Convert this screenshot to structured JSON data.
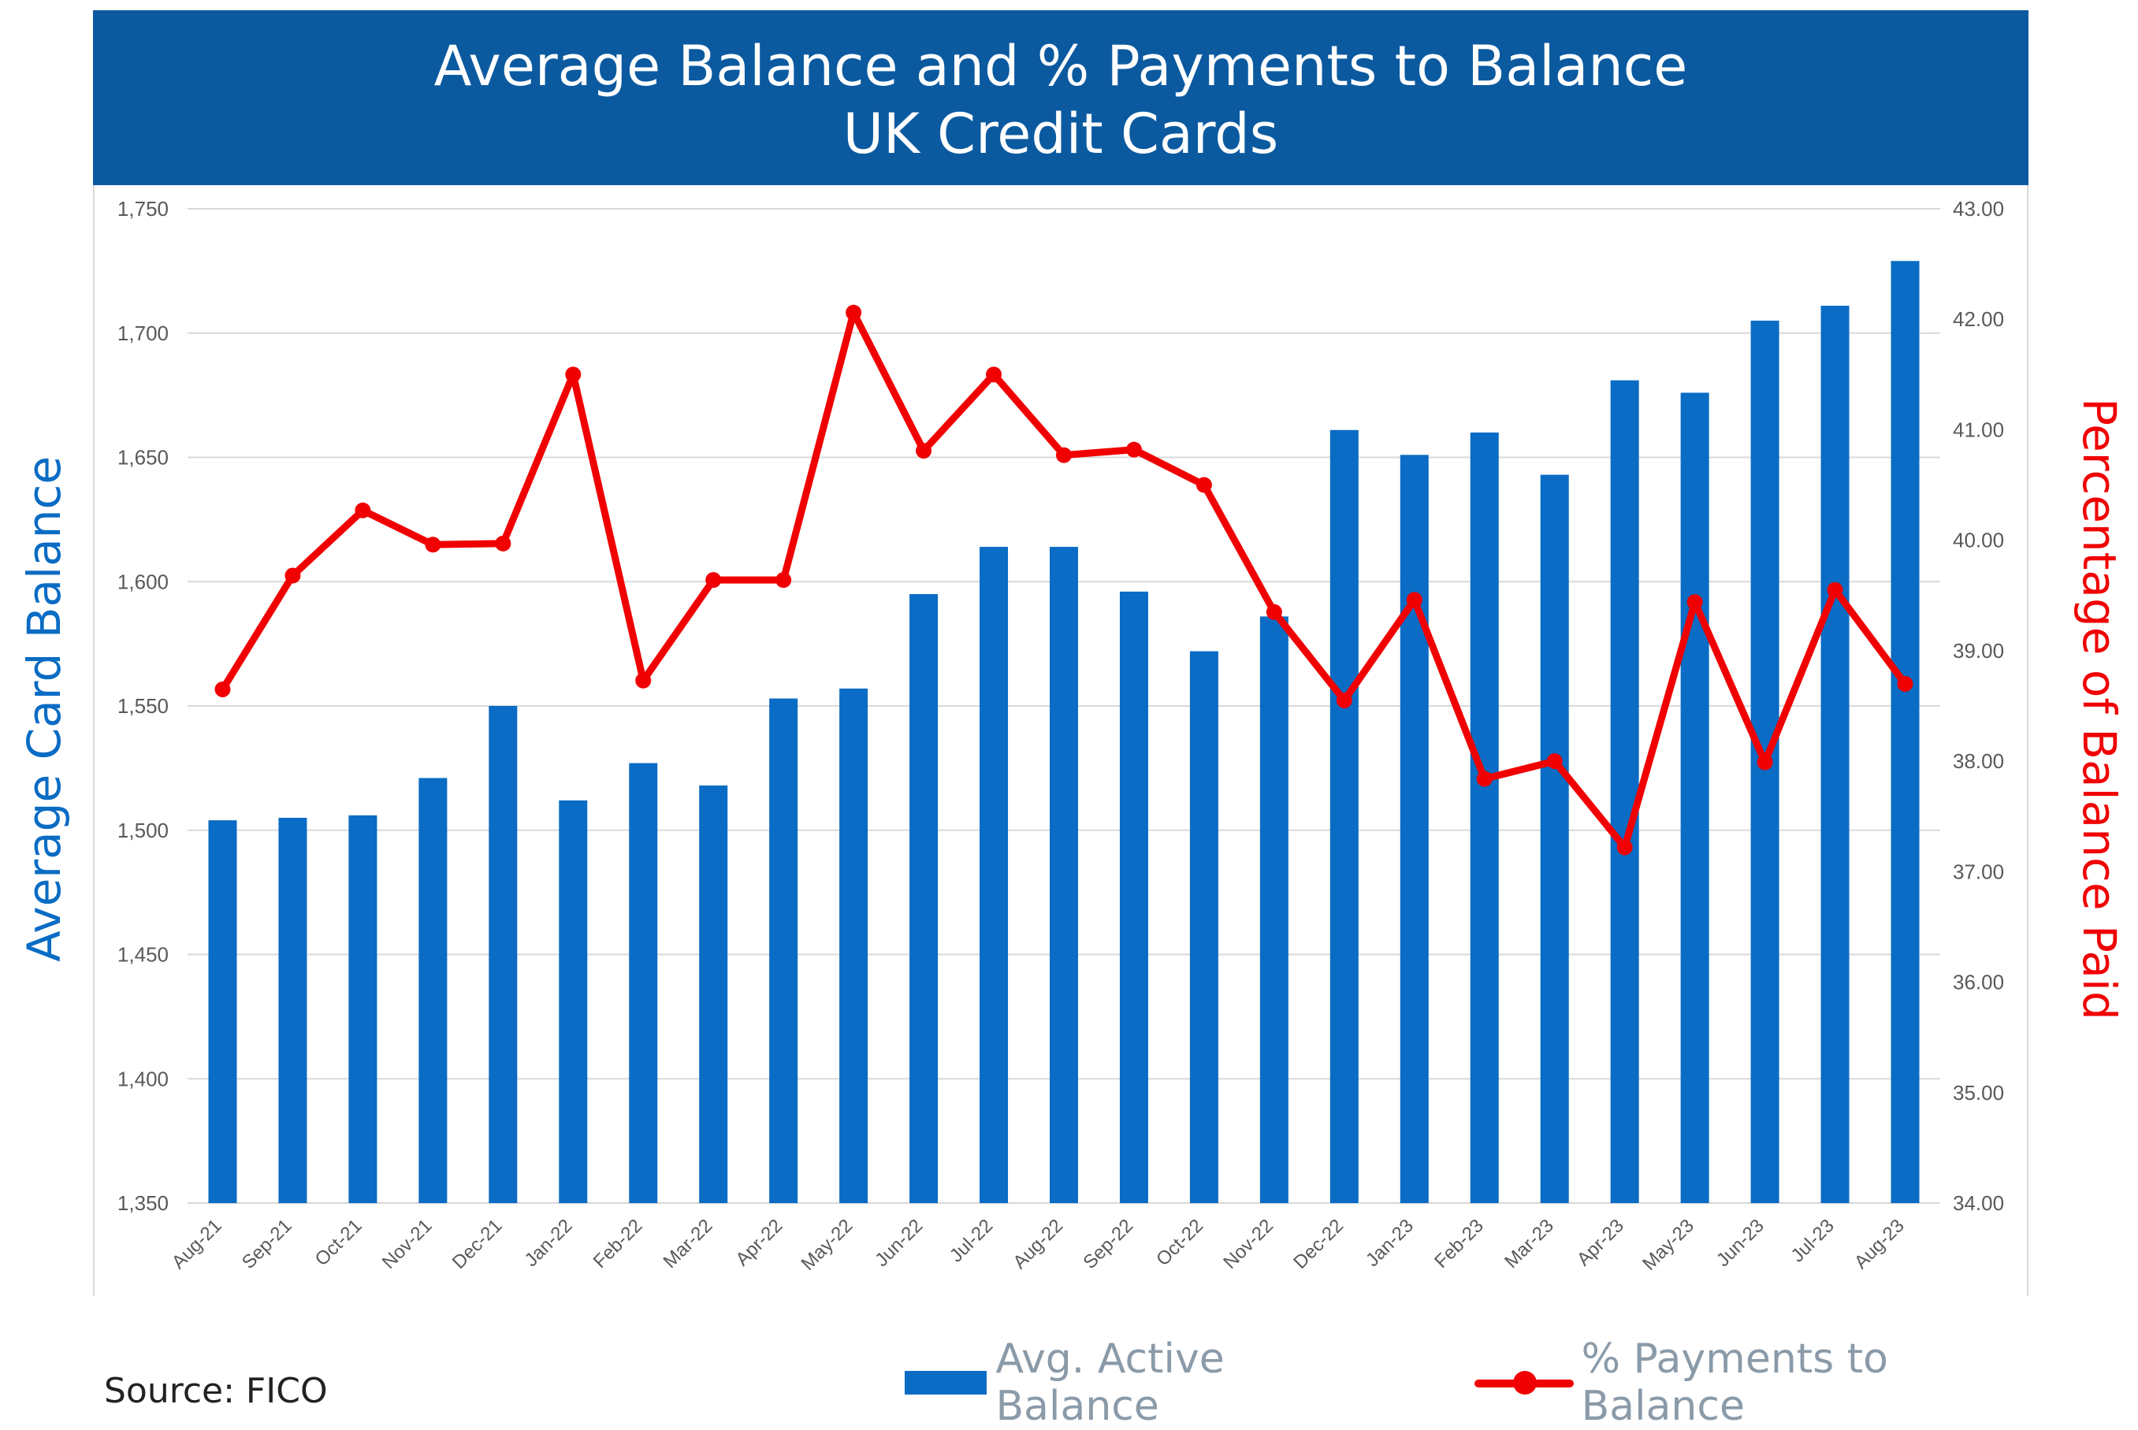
{
  "title": {
    "line1": "Average Balance and % Payments to Balance",
    "line2": "UK Credit Cards"
  },
  "source": "Source: FICO",
  "legend": {
    "bar_label": "Avg. Active Balance",
    "line_label": "% Payments to Balance"
  },
  "colors": {
    "banner": "#0b5aa0",
    "bar": "#0a6cc4",
    "line": "#f00000",
    "left_axis_title": "#0a6cc4",
    "right_axis_title": "#f00000",
    "grid": "#d9d9d9"
  },
  "chart_data": {
    "type": "bar+line",
    "categories": [
      "Aug-21",
      "Sep-21",
      "Oct-21",
      "Nov-21",
      "Dec-21",
      "Jan-22",
      "Feb-22",
      "Mar-22",
      "Apr-22",
      "May-22",
      "Jun-22",
      "Jul-22",
      "Aug-22",
      "Sep-22",
      "Oct-22",
      "Nov-22",
      "Dec-22",
      "Jan-23",
      "Feb-23",
      "Mar-23",
      "Apr-23",
      "May-23",
      "Jun-23",
      "Jul-23",
      "Aug-23"
    ],
    "series": [
      {
        "name": "Avg. Active Balance",
        "type": "bar",
        "axis": "left",
        "values": [
          1504,
          1505,
          1506,
          1521,
          1550,
          1512,
          1527,
          1518,
          1553,
          1557,
          1595,
          1614,
          1614,
          1596,
          1572,
          1586,
          1661,
          1651,
          1660,
          1643,
          1681,
          1676,
          1705,
          1711,
          1729
        ]
      },
      {
        "name": "% Payments to Balance",
        "type": "line",
        "axis": "right",
        "values": [
          38.65,
          39.68,
          40.27,
          39.96,
          39.97,
          41.5,
          38.73,
          39.64,
          39.64,
          42.06,
          40.81,
          41.5,
          40.77,
          40.82,
          40.5,
          39.35,
          38.55,
          39.46,
          37.84,
          38.0,
          37.22,
          39.44,
          37.99,
          39.55,
          38.7
        ]
      }
    ],
    "left_axis": {
      "title": "Average Card Balance",
      "ylim": [
        1350,
        1750
      ],
      "ticks": [
        "1,350",
        "1,400",
        "1,450",
        "1,500",
        "1,550",
        "1,600",
        "1,650",
        "1,700",
        "1,750"
      ]
    },
    "right_axis": {
      "title": "Percentage of Balance Paid",
      "ylim": [
        34,
        43
      ],
      "ticks": [
        "34.00",
        "35.00",
        "36.00",
        "37.00",
        "38.00",
        "39.00",
        "40.00",
        "41.00",
        "42.00",
        "43.00"
      ]
    },
    "grid": true,
    "legend_position": "bottom-right"
  }
}
